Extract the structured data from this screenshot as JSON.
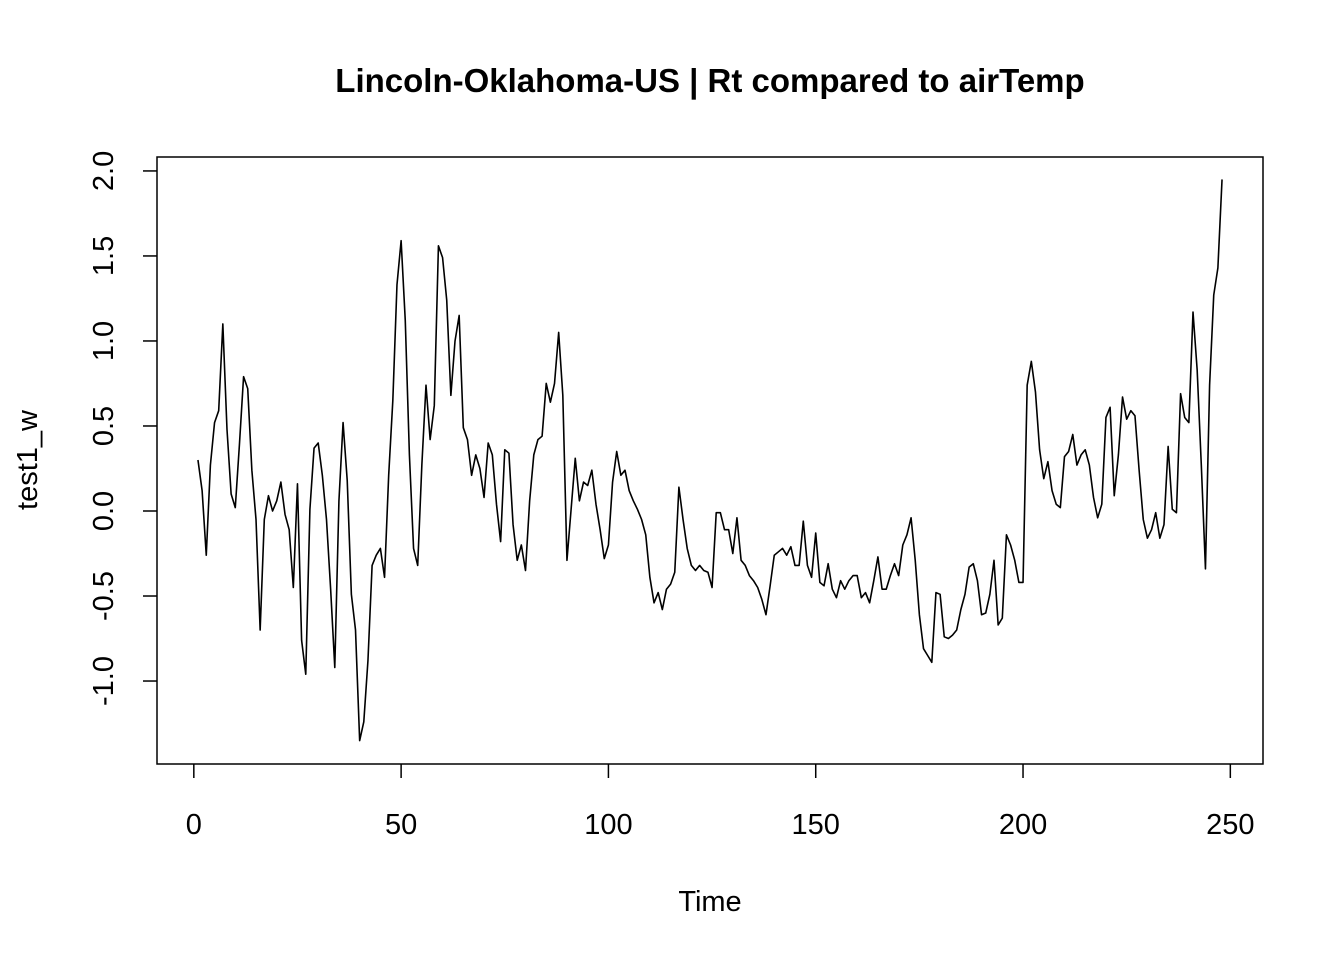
{
  "chart_data": {
    "type": "line",
    "title": "Lincoln-Oklahoma-US | Rt compared to airTemp",
    "x_label": "Time",
    "y_label": "test1_w",
    "x": [
      1,
      2,
      3,
      4,
      5,
      6,
      7,
      8,
      9,
      10,
      11,
      12,
      13,
      14,
      15,
      16,
      17,
      18,
      19,
      20,
      21,
      22,
      23,
      24,
      25,
      26,
      27,
      28,
      29,
      30,
      31,
      32,
      33,
      34,
      35,
      36,
      37,
      38,
      39,
      40,
      41,
      42,
      43,
      44,
      45,
      46,
      47,
      48,
      49,
      50,
      51,
      52,
      53,
      54,
      55,
      56,
      57,
      58,
      59,
      60,
      61,
      62,
      63,
      64,
      65,
      66,
      67,
      68,
      69,
      70,
      71,
      72,
      73,
      74,
      75,
      76,
      77,
      78,
      79,
      80,
      81,
      82,
      83,
      84,
      85,
      86,
      87,
      88,
      89,
      90,
      91,
      92,
      93,
      94,
      95,
      96,
      97,
      98,
      99,
      100,
      101,
      102,
      103,
      104,
      105,
      106,
      107,
      108,
      109,
      110,
      111,
      112,
      113,
      114,
      115,
      116,
      117,
      118,
      119,
      120,
      121,
      122,
      123,
      124,
      125,
      126,
      127,
      128,
      129,
      130,
      131,
      132,
      133,
      134,
      135,
      136,
      137,
      138,
      139,
      140,
      141,
      142,
      143,
      144,
      145,
      146,
      147,
      148,
      149,
      150,
      151,
      152,
      153,
      154,
      155,
      156,
      157,
      158,
      159,
      160,
      161,
      162,
      163,
      164,
      165,
      166,
      167,
      168,
      169,
      170,
      171,
      172,
      173,
      174,
      175,
      176,
      177,
      178,
      179,
      180,
      181,
      182,
      183,
      184,
      185,
      186,
      187,
      188,
      189,
      190,
      191,
      192,
      193,
      194,
      195,
      196,
      197,
      198,
      199,
      200,
      201,
      202,
      203,
      204,
      205,
      206,
      207,
      208,
      209,
      210,
      211,
      212,
      213,
      214,
      215,
      216,
      217,
      218,
      219,
      220,
      221,
      222,
      223,
      224,
      225,
      226,
      227,
      228,
      229,
      230,
      231,
      232,
      233,
      234,
      235,
      236,
      237,
      238,
      239,
      240,
      241,
      242,
      243,
      244,
      245,
      246,
      247,
      248
    ],
    "series": [
      {
        "color": "#000000",
        "values": [
          0.3,
          0.12,
          -0.26,
          0.27,
          0.52,
          0.59,
          1.1,
          0.48,
          0.1,
          0.02,
          0.39,
          0.79,
          0.72,
          0.24,
          -0.05,
          -0.7,
          -0.05,
          0.09,
          0.0,
          0.06,
          0.17,
          -0.02,
          -0.11,
          -0.45,
          0.16,
          -0.76,
          -0.96,
          0.01,
          0.37,
          0.4,
          0.21,
          -0.05,
          -0.46,
          -0.92,
          0.06,
          0.52,
          0.18,
          -0.49,
          -0.7,
          -1.35,
          -1.24,
          -0.88,
          -0.32,
          -0.26,
          -0.22,
          -0.39,
          0.21,
          0.65,
          1.33,
          1.59,
          1.12,
          0.33,
          -0.22,
          -0.32,
          0.27,
          0.74,
          0.42,
          0.62,
          1.56,
          1.49,
          1.24,
          0.68,
          1.0,
          1.15,
          0.49,
          0.42,
          0.21,
          0.33,
          0.25,
          0.08,
          0.4,
          0.33,
          0.04,
          -0.18,
          0.36,
          0.34,
          -0.08,
          -0.29,
          -0.2,
          -0.35,
          0.06,
          0.33,
          0.42,
          0.44,
          0.75,
          0.64,
          0.75,
          1.05,
          0.68,
          -0.29,
          0.01,
          0.31,
          0.06,
          0.17,
          0.15,
          0.24,
          0.04,
          -0.11,
          -0.28,
          -0.2,
          0.17,
          0.35,
          0.21,
          0.24,
          0.12,
          0.06,
          0.01,
          -0.05,
          -0.14,
          -0.39,
          -0.54,
          -0.48,
          -0.58,
          -0.46,
          -0.43,
          -0.36,
          0.14,
          -0.05,
          -0.22,
          -0.32,
          -0.35,
          -0.32,
          -0.35,
          -0.36,
          -0.45,
          -0.01,
          -0.01,
          -0.11,
          -0.11,
          -0.25,
          -0.04,
          -0.29,
          -0.32,
          -0.38,
          -0.41,
          -0.45,
          -0.52,
          -0.61,
          -0.44,
          -0.26,
          -0.24,
          -0.22,
          -0.26,
          -0.21,
          -0.32,
          -0.32,
          -0.06,
          -0.32,
          -0.39,
          -0.13,
          -0.42,
          -0.44,
          -0.31,
          -0.46,
          -0.51,
          -0.41,
          -0.46,
          -0.41,
          -0.38,
          -0.38,
          -0.51,
          -0.48,
          -0.54,
          -0.41,
          -0.27,
          -0.46,
          -0.46,
          -0.38,
          -0.31,
          -0.38,
          -0.2,
          -0.14,
          -0.04,
          -0.29,
          -0.61,
          -0.81,
          -0.85,
          -0.89,
          -0.48,
          -0.49,
          -0.74,
          -0.75,
          -0.73,
          -0.7,
          -0.58,
          -0.49,
          -0.33,
          -0.31,
          -0.41,
          -0.61,
          -0.6,
          -0.49,
          -0.29,
          -0.67,
          -0.63,
          -0.14,
          -0.2,
          -0.29,
          -0.42,
          -0.42,
          0.74,
          0.88,
          0.7,
          0.36,
          0.19,
          0.29,
          0.12,
          0.04,
          0.02,
          0.32,
          0.35,
          0.45,
          0.27,
          0.33,
          0.36,
          0.27,
          0.08,
          -0.04,
          0.04,
          0.55,
          0.61,
          0.09,
          0.33,
          0.67,
          0.54,
          0.59,
          0.56,
          0.24,
          -0.05,
          -0.16,
          -0.11,
          -0.01,
          -0.16,
          -0.08,
          0.38,
          0.01,
          -0.01,
          0.69,
          0.55,
          0.52,
          1.17,
          0.83,
          0.27,
          -0.34,
          0.74,
          1.27,
          1.43,
          1.95
        ]
      }
    ],
    "xlim": [
      -8.88,
      257.88
    ],
    "ylim": [
      -1.488,
      2.082
    ],
    "xticks": [
      0,
      50,
      100,
      150,
      200,
      250
    ],
    "yticks": [
      {
        "value": -1,
        "label": "-1.0"
      },
      -0.5,
      {
        "value": 0,
        "label": "0.0"
      },
      0.5,
      {
        "value": 1,
        "label": "1.0"
      },
      1.5,
      {
        "value": 2,
        "label": "2.0"
      }
    ]
  }
}
